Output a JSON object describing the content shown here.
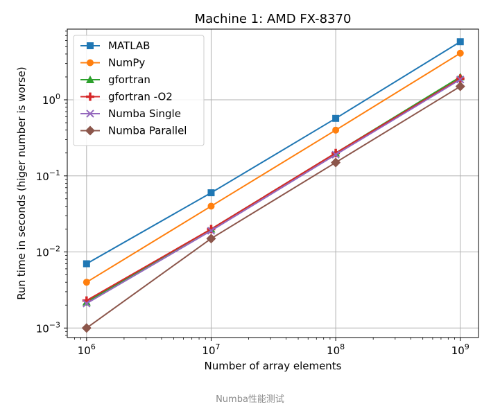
{
  "caption": "Numba性能测试",
  "chart_data": {
    "type": "line",
    "title": "Machine 1: AMD FX-8370",
    "xlabel": "Number of array elements",
    "ylabel": "Run time in seconds (higer number is worse)",
    "x_scale": "log",
    "y_scale": "log",
    "xlim": [
      700000,
      1400000000
    ],
    "ylim": [
      0.00075,
      8.5
    ],
    "x_ticks": [
      {
        "value": 1000000,
        "base": "10",
        "exp": "6"
      },
      {
        "value": 10000000,
        "base": "10",
        "exp": "7"
      },
      {
        "value": 100000000,
        "base": "10",
        "exp": "8"
      },
      {
        "value": 1000000000,
        "base": "10",
        "exp": "9"
      }
    ],
    "y_ticks": [
      {
        "value": 0.001,
        "base": "10",
        "exp": "−3"
      },
      {
        "value": 0.01,
        "base": "10",
        "exp": "−2"
      },
      {
        "value": 0.1,
        "base": "10",
        "exp": "−1"
      },
      {
        "value": 1,
        "base": "10",
        "exp": "0"
      }
    ],
    "grid": true,
    "legend_position": "top-left",
    "x": [
      1000000,
      10000000,
      100000000,
      1000000000
    ],
    "series": [
      {
        "name": "MATLAB",
        "color": "#1f77b4",
        "marker": "square",
        "values": [
          0.007,
          0.06,
          0.57,
          5.8
        ]
      },
      {
        "name": "NumPy",
        "color": "#ff7f0e",
        "marker": "circle",
        "values": [
          0.004,
          0.04,
          0.4,
          4.1
        ]
      },
      {
        "name": "gfortran",
        "color": "#2ca02c",
        "marker": "triangle",
        "values": [
          0.0022,
          0.02,
          0.2,
          2.0
        ]
      },
      {
        "name": "gfortran -O2",
        "color": "#d62728",
        "marker": "plus",
        "values": [
          0.0023,
          0.02,
          0.2,
          1.9
        ]
      },
      {
        "name": "Numba Single",
        "color": "#9467bd",
        "marker": "x",
        "values": [
          0.0021,
          0.019,
          0.19,
          1.85
        ]
      },
      {
        "name": "Numba Parallel",
        "color": "#8c564b",
        "marker": "diamond",
        "values": [
          0.001,
          0.015,
          0.15,
          1.5
        ]
      }
    ]
  }
}
